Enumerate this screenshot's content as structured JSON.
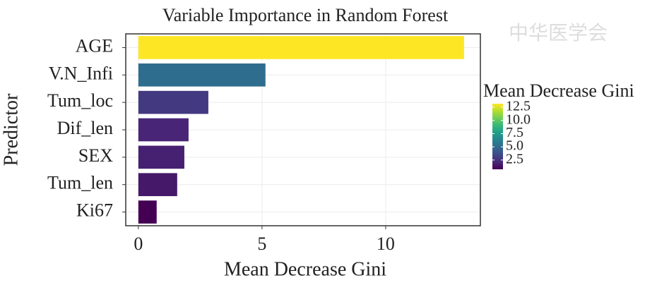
{
  "chart_data": {
    "type": "barh",
    "title": "Variable Importance in Random Forest",
    "watermark": "中华医学会",
    "categories": [
      "AGE",
      "V.N_Infi",
      "Tum_loc",
      "Dif_len",
      "SEX",
      "Tum_len",
      "Ki67"
    ],
    "values": [
      13.17,
      5.14,
      2.83,
      2.03,
      1.86,
      1.57,
      0.74
    ],
    "xlabel": "Mean Decrease Gini",
    "ylabel": "Predictor",
    "xlim": [
      -0.51,
      13.83
    ],
    "xticks": [
      0,
      5,
      10
    ],
    "grid": true,
    "colorbar": {
      "title": "Mean Decrease Gini",
      "lim": [
        0.74,
        13.17
      ],
      "ticks": [
        2.5,
        {
          "value": 5,
          "label": "5.0"
        },
        7.5,
        {
          "value": 10,
          "label": "10.0"
        },
        12.5
      ],
      "colors": [
        "#440154",
        "#482878",
        "#3e4989",
        "#31688e",
        "#26828e",
        "#1f9e89",
        "#35b779",
        "#6ece58",
        "#b5de2b",
        "#fde725"
      ]
    }
  }
}
